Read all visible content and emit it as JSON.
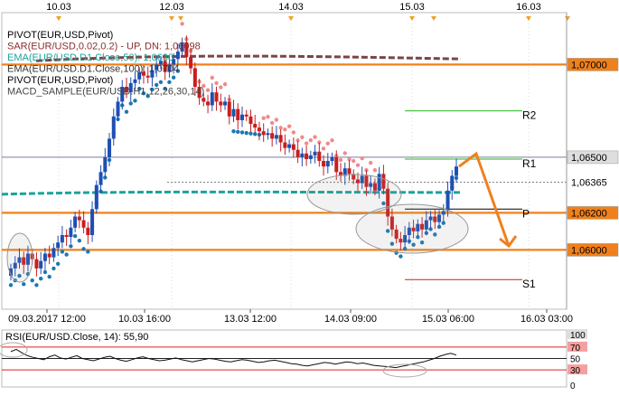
{
  "chart_data": {
    "type": "candlestick",
    "title": "",
    "top_dates": [
      "10.03",
      "12.03",
      "14.03",
      "15.03",
      "16.03"
    ],
    "x_ticks": [
      "09.03.2017 12:00",
      "10.03 16:00",
      "13.03 12:00",
      "14.03 09:00",
      "15.03 06:00",
      "16.03 03:00"
    ],
    "indicators": [
      {
        "text": "PIVOT(EUR,USD,Pivot)",
        "color": "#000000"
      },
      {
        "text": "SAR(EUR/USD,0.02,0.2) - UP, DN: 1,06098",
        "color": "#8b2c2c"
      },
      {
        "text": "EMA(EUR/USD.D1.Close,50): 1,0630",
        "color": "#1aa39b"
      },
      {
        "text": "EMA(EUR/USD.D1.Close,100): 1,0704",
        "color": "#333333"
      },
      {
        "text": "PIVOT(EUR,USD,Pivot)",
        "color": "#000000"
      },
      {
        "text": "MACD_SAMPLE(EUR/USD.H1,12,26,30,14)",
        "color": "#444444"
      }
    ],
    "price_axis": {
      "min": 1.0568,
      "max": 1.0728,
      "labels": [
        {
          "value": 1.07,
          "text": "1,07000",
          "bg": "#f0801c",
          "fg": "#000000"
        },
        {
          "value": 1.065,
          "text": "1,06500",
          "bg": "#dedede",
          "fg": "#000000"
        },
        {
          "value": 1.06365,
          "text": "1,06365",
          "bg": "#ffffff",
          "fg": "#000000"
        },
        {
          "value": 1.062,
          "text": "1,06200",
          "bg": "#f0801c",
          "fg": "#000000"
        },
        {
          "value": 1.06,
          "text": "1,06000",
          "bg": "#f0801c",
          "fg": "#000000"
        }
      ]
    },
    "pivot_levels": [
      {
        "name": "R2",
        "value": 1.0675,
        "color": "#22bb22"
      },
      {
        "name": "R1",
        "value": 1.0649,
        "color": "#22bb22"
      },
      {
        "name": "P",
        "value": 1.0622,
        "color": "#000000"
      },
      {
        "name": "S1",
        "value": 1.0584,
        "color": "#cc2222"
      }
    ],
    "close_series": [
      1.059,
      1.0593,
      1.0596,
      1.0592,
      1.0598,
      1.0595,
      1.059,
      1.0594,
      1.0598,
      1.0596,
      1.0601,
      1.0604,
      1.0608,
      1.0607,
      1.0612,
      1.0618,
      1.0616,
      1.0612,
      1.0608,
      1.0622,
      1.0635,
      1.0642,
      1.065,
      1.066,
      1.0672,
      1.068,
      1.0688,
      1.0685,
      1.069,
      1.0692,
      1.0696,
      1.0694,
      1.0693,
      1.0697,
      1.07,
      1.0702,
      1.0696,
      1.07,
      1.0703,
      1.0707,
      1.0712,
      1.0704,
      1.0698,
      1.0688,
      1.0682,
      1.068,
      1.0678,
      1.0685,
      1.068,
      1.0678,
      1.068,
      1.0672,
      1.0676,
      1.067,
      1.0673,
      1.0672,
      1.0668,
      1.0666,
      1.0664,
      1.0662,
      1.0663,
      1.066,
      1.0662,
      1.0658,
      1.0655,
      1.0657,
      1.0654,
      1.065,
      1.0652,
      1.0649,
      1.0651,
      1.0653,
      1.0648,
      1.0645,
      1.0648,
      1.065,
      1.0642,
      1.064,
      1.0644,
      1.0641,
      1.0638,
      1.0636,
      1.064,
      1.0634,
      1.0636,
      1.0632,
      1.0641,
      1.0633,
      1.0618,
      1.0611,
      1.0606,
      1.0604,
      1.0608,
      1.0612,
      1.061,
      1.0614,
      1.0611,
      1.0616,
      1.0618,
      1.0615,
      1.0619,
      1.0621,
      1.0632,
      1.064,
      1.0645
    ],
    "projection": [
      1.0645,
      1.0648,
      1.0608
    ],
    "rsi": {
      "label": "RSI(EUR/USD.Close, 14): 55,90",
      "levels": [
        "100",
        "70",
        "50",
        "30",
        "0"
      ],
      "values": [
        62,
        66,
        60,
        55,
        52,
        50,
        48,
        53,
        56,
        51,
        49,
        52,
        55,
        50,
        48,
        46,
        49,
        52,
        54,
        50,
        47,
        45,
        48,
        51,
        53,
        50,
        48,
        46,
        47,
        49,
        51,
        48,
        46,
        44,
        46,
        48,
        50,
        49,
        47,
        45,
        44,
        46,
        48,
        47,
        45,
        43,
        44,
        46,
        47,
        45,
        43,
        41,
        40,
        38,
        37,
        39,
        41,
        43,
        42,
        40,
        42,
        44,
        43,
        41,
        42,
        40,
        38,
        37,
        36,
        35,
        34,
        36,
        38,
        40,
        42,
        44,
        47,
        50,
        54,
        57,
        59,
        56
      ]
    },
    "grid": true
  }
}
